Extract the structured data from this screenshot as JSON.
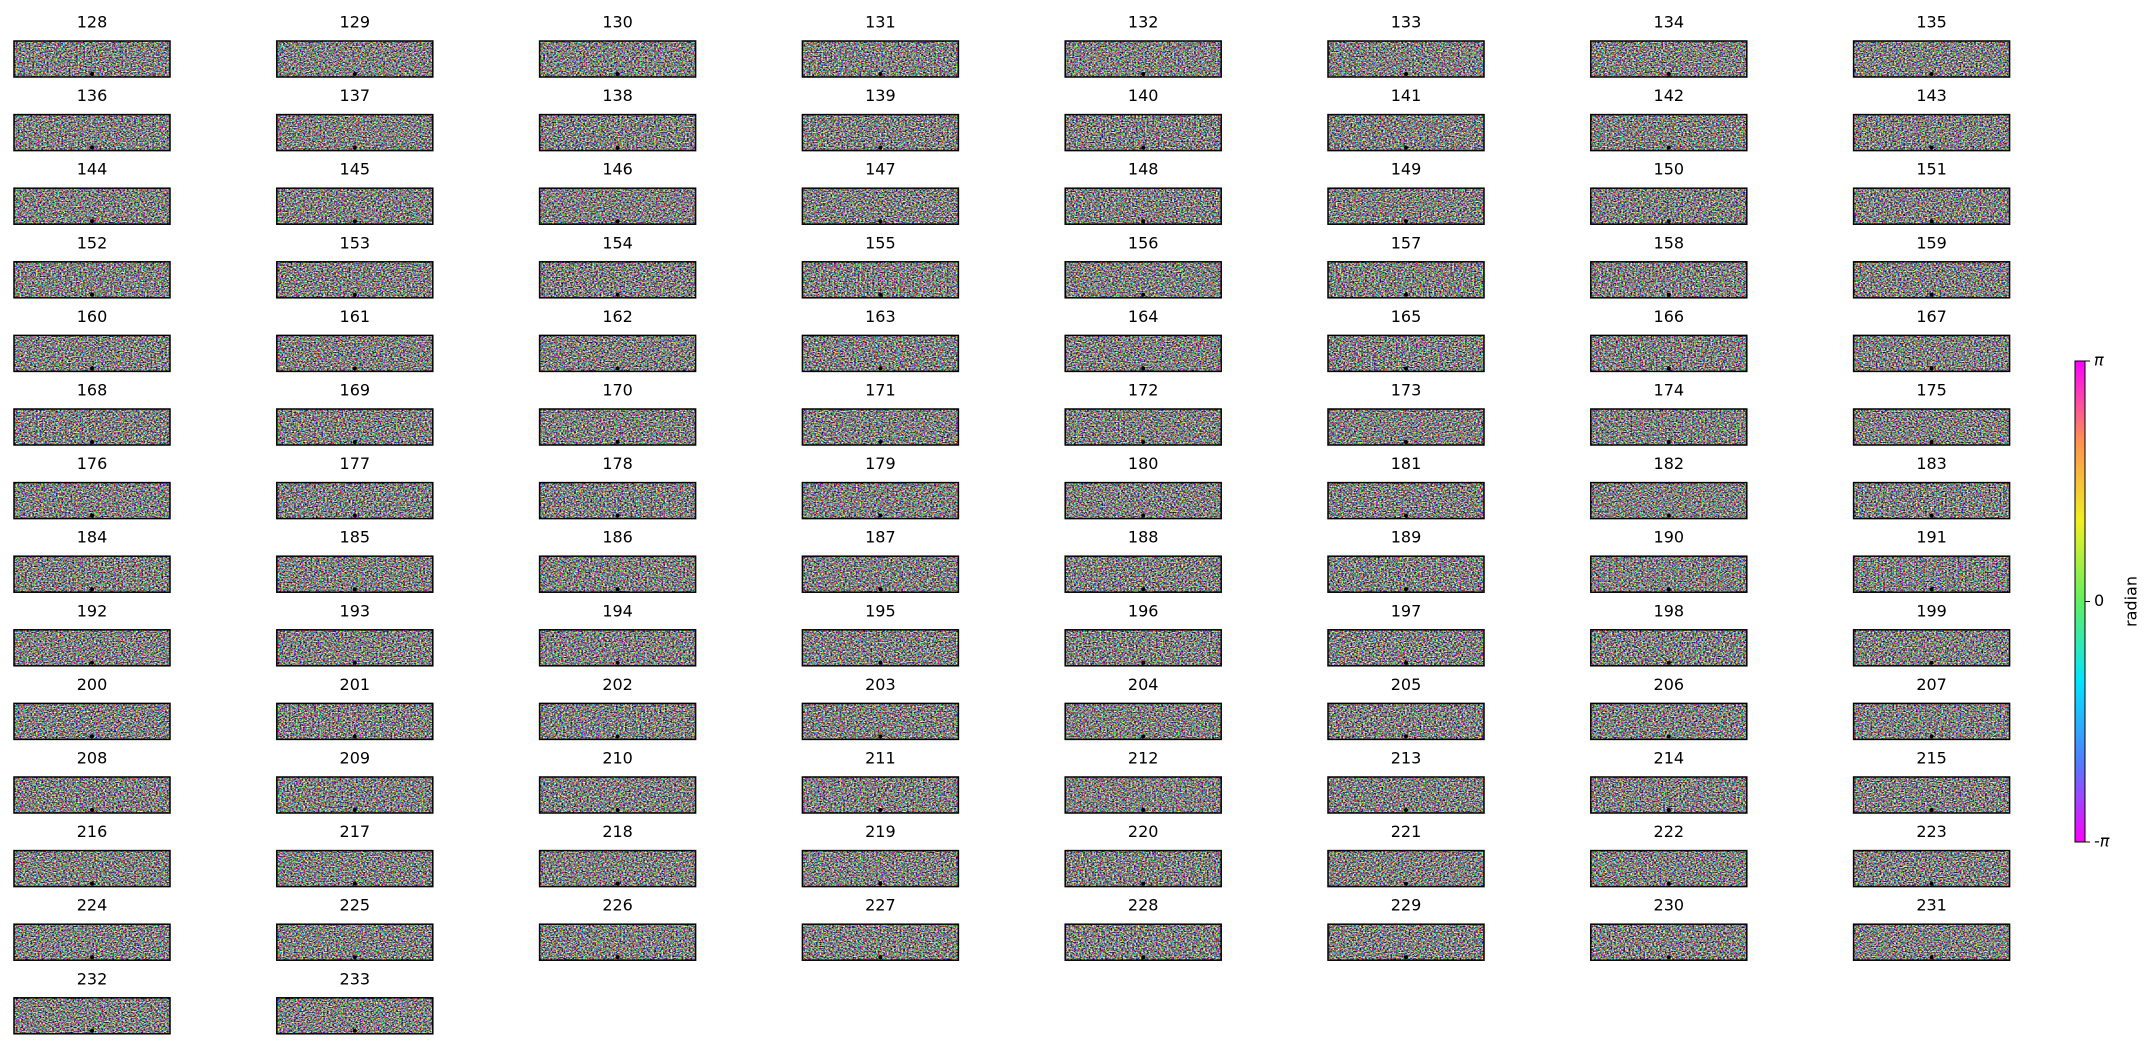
{
  "chart_data": {
    "type": "image_grid",
    "columns": 8,
    "titles": [
      "128",
      "129",
      "130",
      "131",
      "132",
      "133",
      "134",
      "135",
      "136",
      "137",
      "138",
      "139",
      "140",
      "141",
      "142",
      "143",
      "144",
      "145",
      "146",
      "147",
      "148",
      "149",
      "150",
      "151",
      "152",
      "153",
      "154",
      "155",
      "156",
      "157",
      "158",
      "159",
      "160",
      "161",
      "162",
      "163",
      "164",
      "165",
      "166",
      "167",
      "168",
      "169",
      "170",
      "171",
      "172",
      "173",
      "174",
      "175",
      "176",
      "177",
      "178",
      "179",
      "180",
      "181",
      "182",
      "183",
      "184",
      "185",
      "186",
      "187",
      "188",
      "189",
      "190",
      "191",
      "192",
      "193",
      "194",
      "195",
      "196",
      "197",
      "198",
      "199",
      "200",
      "201",
      "202",
      "203",
      "204",
      "205",
      "206",
      "207",
      "208",
      "209",
      "210",
      "211",
      "212",
      "213",
      "214",
      "215",
      "216",
      "217",
      "218",
      "219",
      "220",
      "221",
      "222",
      "223",
      "224",
      "225",
      "226",
      "227",
      "228",
      "229",
      "230",
      "231",
      "232",
      "233"
    ],
    "colorbar": {
      "label": "radian",
      "lim": [
        -3.14159,
        3.14159
      ],
      "ticks": [
        {
          "value": 3.14159,
          "label": "π"
        },
        0,
        {
          "value": -3.14159,
          "label": "-π"
        }
      ],
      "colormap": [
        "#ff00ff",
        "#4f7dff",
        "#00e5ff",
        "#60f060",
        "#f0f020",
        "#ff9050",
        "#ff00ff"
      ]
    }
  }
}
